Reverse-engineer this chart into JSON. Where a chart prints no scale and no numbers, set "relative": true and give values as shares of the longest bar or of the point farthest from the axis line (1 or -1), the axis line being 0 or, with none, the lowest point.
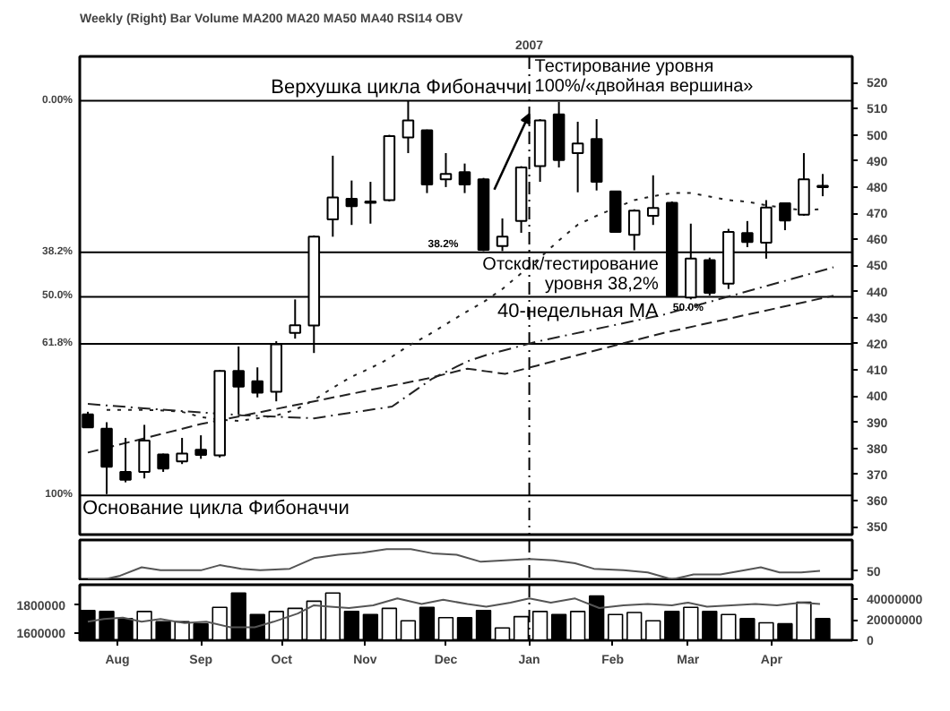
{
  "chart_data": [
    {
      "type": "candlestick",
      "title": "Weekly (Right) Bar Volume MA200 MA20 MA50 MA40 RSI14 OBV",
      "x": [
        "2006-07-21",
        "2006-07-28",
        "2006-08-04",
        "2006-08-11",
        "2006-08-18",
        "2006-08-25",
        "2006-09-01",
        "2006-09-08",
        "2006-09-15",
        "2006-09-22",
        "2006-09-29",
        "2006-10-06",
        "2006-10-13",
        "2006-10-20",
        "2006-10-27",
        "2006-11-03",
        "2006-11-10",
        "2006-11-17",
        "2006-11-24",
        "2006-12-01",
        "2006-12-08",
        "2006-12-15",
        "2006-12-22",
        "2006-12-29",
        "2007-01-05",
        "2007-01-12",
        "2007-01-19",
        "2007-01-26",
        "2007-02-02",
        "2007-02-09",
        "2007-02-16",
        "2007-02-23",
        "2007-03-02",
        "2007-03-09",
        "2007-03-16",
        "2007-03-23",
        "2007-03-30",
        "2007-04-06",
        "2007-04-13",
        "2007-04-20"
      ],
      "ohlc": [
        [
          393,
          394,
          388,
          388
        ],
        [
          387.5,
          390,
          362.5,
          373
        ],
        [
          371,
          384,
          367,
          368
        ],
        [
          371,
          389,
          368.5,
          383
        ],
        [
          377.7,
          378,
          371,
          372.3
        ],
        [
          375,
          384,
          374,
          378
        ],
        [
          379.5,
          385,
          376,
          377.5
        ],
        [
          377.3,
          410,
          376.5,
          409.6
        ],
        [
          409.6,
          419,
          393,
          403.6
        ],
        [
          405.7,
          411,
          399.5,
          401.3
        ],
        [
          401.7,
          421,
          398,
          419.8
        ],
        [
          424.2,
          437,
          422,
          427.1
        ],
        [
          427,
          461.5,
          416.5,
          461
        ],
        [
          467.6,
          492,
          461,
          476
        ],
        [
          475.5,
          482.5,
          465.5,
          472.7
        ],
        [
          474,
          482,
          466,
          474.5
        ],
        [
          475,
          500,
          474.5,
          499.5
        ],
        [
          499,
          513,
          493,
          505.5
        ],
        [
          501.7,
          502,
          477.7,
          481
        ],
        [
          483,
          493,
          480,
          485
        ],
        [
          485.7,
          489,
          477.7,
          481
        ],
        [
          483,
          483.5,
          455.5,
          456
        ],
        [
          457.4,
          468,
          455.5,
          461
        ],
        [
          467,
          488,
          462.5,
          487.5
        ],
        [
          488,
          506,
          482,
          505.5
        ],
        [
          507.8,
          512.6,
          487.5,
          490.3
        ],
        [
          493,
          505,
          478,
          496.7
        ],
        [
          498.4,
          506,
          478.7,
          482
        ],
        [
          478.3,
          478.5,
          462.5,
          462.8
        ],
        [
          461.7,
          471.5,
          455.8,
          471
        ],
        [
          469,
          484.5,
          465.5,
          472
        ],
        [
          474,
          474.5,
          438,
          438.4
        ],
        [
          437.7,
          466,
          437,
          452.6
        ],
        [
          452,
          453,
          438.5,
          439.5
        ],
        [
          443,
          464,
          441,
          462.8
        ],
        [
          462.4,
          467,
          457,
          459
        ],
        [
          458.7,
          475,
          452.6,
          472.2
        ],
        [
          473.8,
          474,
          463.5,
          467.2
        ],
        [
          469.4,
          493,
          469,
          483
        ],
        [
          480,
          485,
          476.5,
          480.5
        ]
      ],
      "series": [
        {
          "type": "line",
          "line_style": "dashdot",
          "color": "#222222",
          "x": [
            "2006-07-21",
            "2006-08-19",
            "2006-09-16",
            "2006-10-13",
            "2006-11-11",
            "2006-11-26",
            "2006-12-09",
            "2006-12-16",
            "2007-01-04",
            "2007-02-20",
            "2007-04-24"
          ],
          "values": [
            397,
            394.7,
            392.7,
            391.5,
            396,
            406.7,
            413.3,
            415.7,
            420.9,
            431.2,
            449.3
          ]
        },
        {
          "type": "line",
          "line_style": "dashed",
          "color": "#222222",
          "x": [
            "2006-07-21",
            "2006-09-01",
            "2006-10-13",
            "2006-11-24",
            "2006-12-09",
            "2006-12-16",
            "2006-12-23",
            "2007-01-04",
            "2007-02-20",
            "2007-04-24"
          ],
          "values": [
            378.4,
            389.3,
            398,
            406.7,
            410.5,
            409.5,
            408.5,
            411.7,
            424.2,
            438.4
          ]
        },
        {
          "type": "line",
          "line_style": "dotted",
          "color": "#222222",
          "x": [
            "2006-07-28",
            "2006-08-04",
            "2006-08-11",
            "2006-08-18",
            "2006-08-25",
            "2006-09-01",
            "2006-09-08",
            "2006-09-15",
            "2006-09-22",
            "2006-09-29",
            "2006-10-06",
            "2006-10-13",
            "2006-10-20",
            "2006-10-27",
            "2006-11-03",
            "2006-11-10",
            "2006-11-17",
            "2006-11-24",
            "2006-12-01",
            "2006-12-08",
            "2006-12-15",
            "2006-12-22",
            "2006-12-29",
            "2007-01-05",
            "2007-01-12",
            "2007-01-19",
            "2007-01-26",
            "2007-02-02",
            "2007-02-09",
            "2007-02-16",
            "2007-02-23",
            "2007-03-02",
            "2007-03-09",
            "2007-03-16",
            "2007-03-23",
            "2007-03-30",
            "2007-04-06",
            "2007-04-13",
            "2007-04-20"
          ],
          "values": [
            394.7,
            394.7,
            394.7,
            394.5,
            394,
            392,
            391,
            390.5,
            391.5,
            392.6,
            394.7,
            398.5,
            403.2,
            407.4,
            410.7,
            414.4,
            419.2,
            423.1,
            427.5,
            431.9,
            436,
            441,
            447,
            453,
            459.6,
            465.6,
            469,
            472,
            475,
            476.5,
            477.7,
            477.7,
            476.4,
            475,
            474.4,
            473,
            472,
            471.1,
            471.6
          ]
        }
      ],
      "xlim": [
        "2006-07-18",
        "2007-05-01"
      ],
      "ylim": [
        347,
        530
      ],
      "yticks": [
        350,
        360,
        370,
        380,
        390,
        400,
        410,
        420,
        430,
        440,
        450,
        460,
        470,
        480,
        490,
        500,
        510,
        520
      ],
      "tick_labels": "y",
      "ref_lines": [
        {
          "axis": "y",
          "value": 513
        },
        {
          "axis": "y",
          "value": 455
        },
        {
          "axis": "y",
          "value": 438
        },
        {
          "axis": "y",
          "value": 420
        },
        {
          "axis": "y",
          "value": 362
        },
        {
          "axis": "x",
          "value": "2007-01-01",
          "label": "2007",
          "line_style": "dashdot"
        }
      ],
      "annotations": [
        {
          "text": "Верхушка цикла Фибоначчи",
          "x": "2006-09-27",
          "y": 513
        },
        {
          "text": "Тестирование уровня\n100%/«двойная вершина»",
          "x": "2007-01-01",
          "y": 508
        },
        {
          "text": "38.2%",
          "x": "2006-11-30",
          "y": 455
        },
        {
          "text": "Отскок/тестирование\nуровня 38,2%",
          "x": "2007-02-20",
          "y": 455
        },
        {
          "text": "50.0%",
          "x": "2007-03-01",
          "y": 438
        },
        {
          "text": "40-недельная MA",
          "x": "2007-02-20",
          "y": 438
        },
        {
          "text": "Основание цикла Фибоначчи",
          "x": "2006-07-19",
          "y": 362
        },
        "0.00%",
        "38.2%",
        "50.0%",
        "61.8%",
        "100%"
      ]
    },
    {
      "type": "line",
      "relative": true,
      "tick_labels": false,
      "xlim": [
        "2006-07-18",
        "2007-05-01"
      ],
      "series": [
        {
          "color": "#555555",
          "x": [
            "2006-07-21",
            "2006-07-27",
            "2006-08-02",
            "2006-08-10",
            "2006-08-17",
            "2006-08-25",
            "2006-09-01",
            "2006-09-08",
            "2006-09-16",
            "2006-09-23",
            "2006-10-04",
            "2006-10-13",
            "2006-10-22",
            "2006-10-31",
            "2006-11-09",
            "2006-11-18",
            "2006-11-26",
            "2006-12-05",
            "2006-12-14",
            "2006-12-23",
            "2007-01-01",
            "2007-01-10",
            "2007-01-18",
            "2007-01-25",
            "2007-02-05",
            "2007-02-14",
            "2007-02-23",
            "2007-03-03",
            "2007-03-13",
            "2007-03-22",
            "2007-03-28",
            "2007-04-04",
            "2007-04-12",
            "2007-04-19"
          ],
          "values": [
            0,
            0,
            0.12,
            0.4,
            0.3,
            0.3,
            0.3,
            0.47,
            0.35,
            0.3,
            0.35,
            0.7,
            0.81,
            0.88,
            1,
            1,
            0.86,
            0.81,
            0.58,
            0.63,
            0.67,
            0.63,
            0.53,
            0.35,
            0.3,
            0.23,
            0,
            0.16,
            0.16,
            0.3,
            0.4,
            0.23,
            0.23,
            0.28
          ]
        }
      ],
      "ref_lines": [
        {
          "axis": "x",
          "value": "2007-01-01",
          "line_style": "dashdot"
        }
      ],
      "annotations": [
        "50"
      ]
    },
    {
      "type": "bar",
      "xlim": [
        "2006-07-18",
        "2007-05-01"
      ],
      "xticks": [
        {
          "value": "2006-08-01",
          "label": "Aug"
        },
        {
          "value": "2006-09-01",
          "label": "Sep"
        },
        {
          "value": "2006-10-01",
          "label": "Oct"
        },
        {
          "value": "2006-11-01",
          "label": "Nov"
        },
        {
          "value": "2006-12-01",
          "label": "Dec"
        },
        {
          "value": "2007-01-01",
          "label": "Jan"
        },
        {
          "value": "2007-02-01",
          "label": "Feb"
        },
        {
          "value": "2007-03-01",
          "label": "Mar"
        },
        {
          "value": "2007-04-01",
          "label": "Apr"
        }
      ],
      "ylim": [
        1545000,
        1950000
      ],
      "yticks": [
        1600000,
        1800000
      ],
      "y2lim": [
        0,
        54000000
      ],
      "y2ticks": [
        0,
        20000000,
        40000000
      ],
      "x": [
        "2006-07-21",
        "2006-07-28",
        "2006-08-04",
        "2006-08-11",
        "2006-08-18",
        "2006-08-25",
        "2006-09-01",
        "2006-09-08",
        "2006-09-15",
        "2006-09-22",
        "2006-09-29",
        "2006-10-06",
        "2006-10-13",
        "2006-10-20",
        "2006-10-27",
        "2006-11-03",
        "2006-11-10",
        "2006-11-17",
        "2006-11-24",
        "2006-12-01",
        "2006-12-08",
        "2006-12-15",
        "2006-12-22",
        "2006-12-29",
        "2007-01-05",
        "2007-01-12",
        "2007-01-19",
        "2007-01-26",
        "2007-02-02",
        "2007-02-09",
        "2007-02-16",
        "2007-02-23",
        "2007-03-02",
        "2007-03-09",
        "2007-03-16",
        "2007-03-23",
        "2007-03-30",
        "2007-04-06",
        "2007-04-13",
        "2007-04-20"
      ],
      "series": [
        {
          "type": "bar",
          "axis": "y2",
          "values": [
            29000000,
            28000000,
            21000000,
            28000000,
            18000000,
            18000000,
            16000000,
            32000000,
            46000000,
            25000000,
            28000000,
            31000000,
            38000000,
            46000000,
            28000000,
            25000000,
            31000000,
            19000000,
            32000000,
            22000000,
            22000000,
            29000000,
            12000000,
            23000000,
            28000000,
            25000000,
            28000000,
            43000000,
            25000000,
            27000000,
            19000000,
            28000000,
            32000000,
            28000000,
            25000000,
            21000000,
            17000000,
            16000000,
            37000000,
            21000000
          ],
          "colors": [
            "#000000",
            "#000000",
            "#000000",
            "#ffffff",
            "#000000",
            "#ffffff",
            "#000000",
            "#ffffff",
            "#000000",
            "#000000",
            "#ffffff",
            "#ffffff",
            "#ffffff",
            "#ffffff",
            "#000000",
            "#000000",
            "#ffffff",
            "#ffffff",
            "#000000",
            "#ffffff",
            "#000000",
            "#000000",
            "#ffffff",
            "#ffffff",
            "#ffffff",
            "#000000",
            "#ffffff",
            "#000000",
            "#ffffff",
            "#ffffff",
            "#ffffff",
            "#000000",
            "#ffffff",
            "#000000",
            "#ffffff",
            "#000000",
            "#ffffff",
            "#000000",
            "#ffffff",
            "#000000"
          ]
        },
        {
          "type": "line",
          "color": "#555555",
          "x": [
            "2006-07-21",
            "2006-07-27",
            "2006-08-03",
            "2006-08-10",
            "2006-08-17",
            "2006-08-26",
            "2006-09-03",
            "2006-09-12",
            "2006-09-21",
            "2006-09-28",
            "2006-10-07",
            "2006-10-13",
            "2006-10-19",
            "2006-10-26",
            "2006-11-04",
            "2006-11-13",
            "2006-11-22",
            "2006-11-30",
            "2006-12-09",
            "2006-12-16",
            "2006-12-25",
            "2007-01-01",
            "2007-01-09",
            "2007-01-18",
            "2007-01-27",
            "2007-02-05",
            "2007-02-14",
            "2007-02-23",
            "2007-03-01",
            "2007-03-08",
            "2007-03-17",
            "2007-03-26",
            "2007-04-03",
            "2007-04-12",
            "2007-04-19"
          ],
          "values": [
            1680000,
            1700000,
            1710000,
            1680000,
            1700000,
            1670000,
            1680000,
            1640000,
            1640000,
            1680000,
            1740000,
            1800000,
            1790000,
            1780000,
            1800000,
            1850000,
            1810000,
            1840000,
            1810000,
            1790000,
            1820000,
            1850000,
            1820000,
            1850000,
            1780000,
            1800000,
            1810000,
            1800000,
            1820000,
            1790000,
            1800000,
            1810000,
            1800000,
            1820000,
            1810000
          ]
        }
      ],
      "ref_lines": [
        {
          "axis": "x",
          "value": "2007-01-01",
          "line_style": "dashdot"
        }
      ]
    }
  ]
}
